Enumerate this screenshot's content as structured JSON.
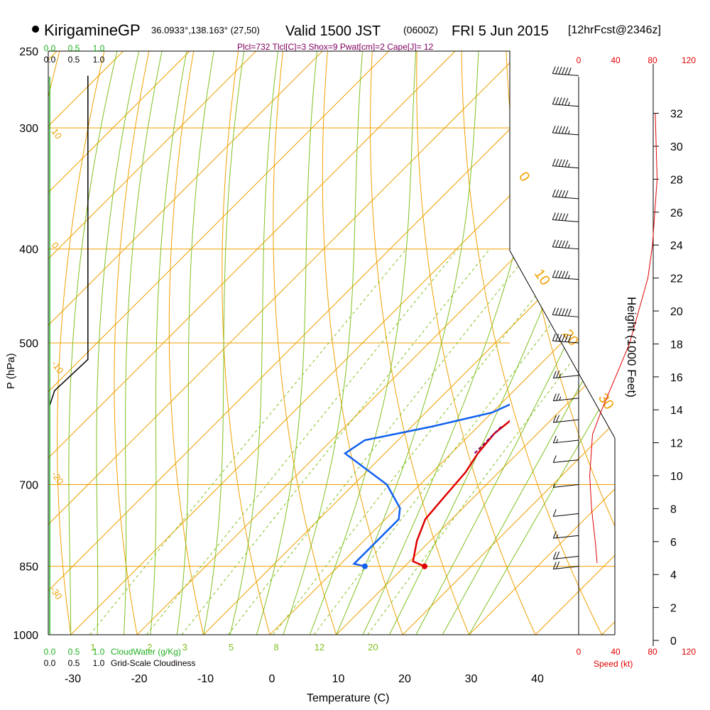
{
  "header": {
    "station": "KirigamineGP",
    "coords": "36.0933°,138.163° (27,50)",
    "valid": "Valid 1500 JST",
    "zulu": "(0600Z)",
    "date": "FRI 5 Jun 2015",
    "forecast": "[12hrFcst@2346z]",
    "indices": "Plcl=732 Tlcl[C]=3 Shox=9 Pwat[cm]=2 Cape[J]= 12"
  },
  "colors": {
    "temperature": "#e00000",
    "dewpoint": "#1060f0",
    "isotherm_isobar": "#f0a000",
    "dry_adiabat": "#f0a000",
    "moist_adiabat": "#80c020",
    "mixing_ratio": "#80c020",
    "cloudwater": "#20b020",
    "cloudiness": "#000000",
    "parcel": "#800060",
    "wind": "#000000",
    "speed": "#e00000"
  },
  "chart_data": {
    "type": "line",
    "title": "Skew-T log-P sounding",
    "xlabel": "Temperature (C)",
    "ylabel": "P (hPa)",
    "right_label": "Height (1000 Feet)",
    "x_ticks": [
      -30,
      -20,
      -10,
      0,
      10,
      20,
      30,
      40
    ],
    "pressure_ticks": [
      250,
      300,
      400,
      500,
      700,
      850,
      1000
    ],
    "height_ticks": [
      0,
      2,
      4,
      6,
      8,
      10,
      12,
      14,
      16,
      18,
      20,
      22,
      24,
      26,
      28,
      30,
      32
    ],
    "cloudwater_ticks": [
      "0.0",
      "0.5",
      "1.0"
    ],
    "cloudiness_ticks": [
      "0.0",
      "0.5",
      "1.0"
    ],
    "cloudwater_label": "CloudWater (g/Kg)",
    "cloudiness_label": "Grid-Scale Cloudiness",
    "speed_ticks": [
      "0",
      "40",
      "80",
      "120"
    ],
    "speed_label": "Speed (kt)",
    "isotherm_labels": [
      "10",
      "0",
      "-10",
      "-20",
      "-30",
      "0",
      "10",
      "20",
      "30"
    ],
    "mixing_ratio_labels": [
      "1",
      "2",
      "3",
      "5",
      "8",
      "12",
      "20"
    ],
    "temperature": [
      {
        "p": 850,
        "t": 23
      },
      {
        "p": 840,
        "t": 20.5
      },
      {
        "p": 800,
        "t": 18
      },
      {
        "p": 760,
        "t": 16
      },
      {
        "p": 720,
        "t": 15.5
      },
      {
        "p": 680,
        "t": 15
      },
      {
        "p": 650,
        "t": 14
      },
      {
        "p": 620,
        "t": 13.5
      },
      {
        "p": 600,
        "t": 14
      },
      {
        "p": 560,
        "t": 15.5
      },
      {
        "p": 500,
        "t": 18
      },
      {
        "p": 450,
        "t": 19
      },
      {
        "p": 400,
        "t": 19.5
      },
      {
        "p": 350,
        "t": 21
      },
      {
        "p": 300,
        "t": 23
      },
      {
        "p": 265,
        "t": 25
      }
    ],
    "dewpoint": [
      {
        "p": 850,
        "t": 14
      },
      {
        "p": 845,
        "t": 12
      },
      {
        "p": 760,
        "t": 12
      },
      {
        "p": 740,
        "t": 10.5
      },
      {
        "p": 700,
        "t": 5
      },
      {
        "p": 650,
        "t": -6
      },
      {
        "p": 630,
        "t": -5
      },
      {
        "p": 610,
        "t": 3
      },
      {
        "p": 590,
        "t": 10
      },
      {
        "p": 560,
        "t": 14
      },
      {
        "p": 500,
        "t": 17
      },
      {
        "p": 450,
        "t": 18
      },
      {
        "p": 400,
        "t": 18
      },
      {
        "p": 350,
        "t": 17
      },
      {
        "p": 300,
        "t": 17.5
      },
      {
        "p": 265,
        "t": 20
      }
    ],
    "parcel": [
      {
        "p": 610,
        "t": 13.5
      },
      {
        "p": 650,
        "t": 13.5
      }
    ],
    "cloudiness": [
      {
        "p": 265,
        "v": 0.78
      },
      {
        "p": 500,
        "v": 0.78
      },
      {
        "p": 520,
        "v": 0.78
      },
      {
        "p": 560,
        "v": 0.1
      },
      {
        "p": 580,
        "v": 0.0
      }
    ],
    "speed_profile_kt": [
      {
        "h": 4.7,
        "s": 20
      },
      {
        "h": 6,
        "s": 18
      },
      {
        "h": 8,
        "s": 14
      },
      {
        "h": 10,
        "s": 12
      },
      {
        "h": 12.5,
        "s": 15
      },
      {
        "h": 14,
        "s": 25
      },
      {
        "h": 16,
        "s": 40
      },
      {
        "h": 18,
        "s": 55
      },
      {
        "h": 20,
        "s": 65
      },
      {
        "h": 22,
        "s": 75
      },
      {
        "h": 24,
        "s": 80
      },
      {
        "h": 28,
        "s": 85
      },
      {
        "h": 32,
        "s": 83
      }
    ],
    "wind_barbs": [
      {
        "p": 265,
        "kt": 60
      },
      {
        "p": 285,
        "kt": 55
      },
      {
        "p": 305,
        "kt": 55
      },
      {
        "p": 330,
        "kt": 55
      },
      {
        "p": 355,
        "kt": 50
      },
      {
        "p": 375,
        "kt": 50
      },
      {
        "p": 400,
        "kt": 55
      },
      {
        "p": 430,
        "kt": 55
      },
      {
        "p": 470,
        "kt": 60
      },
      {
        "p": 500,
        "kt": 60
      },
      {
        "p": 540,
        "kt": 25
      },
      {
        "p": 570,
        "kt": 25
      },
      {
        "p": 600,
        "kt": 20
      },
      {
        "p": 630,
        "kt": 15
      },
      {
        "p": 660,
        "kt": 10
      },
      {
        "p": 700,
        "kt": 5
      },
      {
        "p": 750,
        "kt": 10
      },
      {
        "p": 790,
        "kt": 15
      },
      {
        "p": 830,
        "kt": 20
      },
      {
        "p": 850,
        "kt": 20
      }
    ]
  }
}
